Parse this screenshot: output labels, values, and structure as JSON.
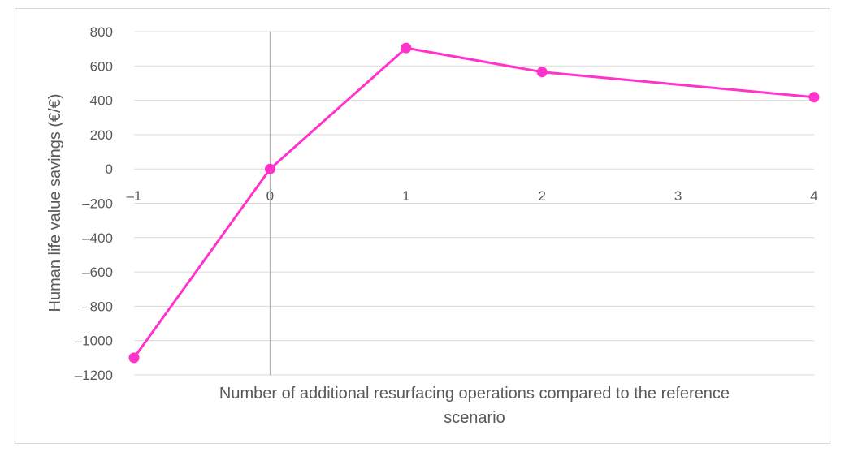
{
  "chart_data": {
    "type": "line",
    "title": "",
    "xlabel": "Number of additional resurfacing operations compared to the reference scenario",
    "xlabel_lines": [
      "Number of additional resurfacing operations compared to the reference",
      "scenario"
    ],
    "ylabel": "Human life value savings (€/€)",
    "x": [
      -1,
      0,
      1,
      2,
      3,
      4
    ],
    "xlim": [
      -1,
      4
    ],
    "ylim": [
      -1200,
      800
    ],
    "x_ticks": [
      "–1",
      "0",
      "1",
      "2",
      "3",
      "4"
    ],
    "y_ticks": [
      "800",
      "600",
      "400",
      "200",
      "0",
      "–200",
      "–400",
      "–600",
      "–800",
      "–1000",
      "–1200"
    ],
    "y_tick_values": [
      800,
      600,
      400,
      200,
      0,
      -200,
      -400,
      -600,
      -800,
      -1000,
      -1200
    ],
    "grid": true,
    "legend": "none",
    "series": [
      {
        "x": [
          -1,
          0,
          1,
          2,
          4
        ],
        "values": [
          -1100,
          0,
          705,
          565,
          418
        ],
        "color": "#ff33cc"
      }
    ]
  }
}
